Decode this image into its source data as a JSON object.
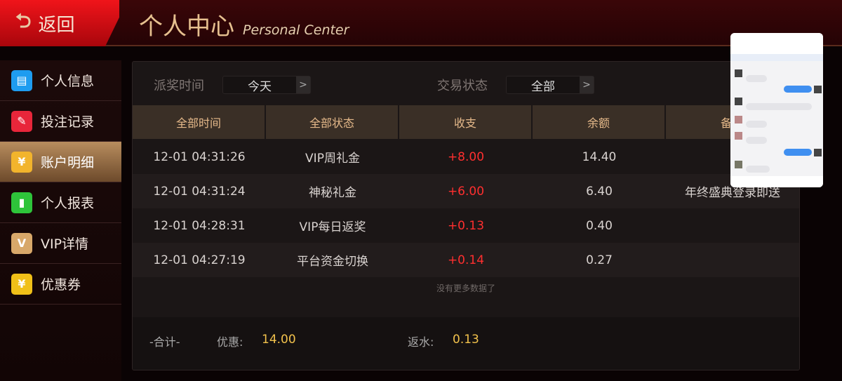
{
  "header": {
    "back_label": "返回",
    "title": "个人中心",
    "title_en": "Personal Center"
  },
  "sidebar": {
    "items": [
      {
        "label": "个人信息",
        "icon": "id-card-icon",
        "color": "#1e9cf0"
      },
      {
        "label": "投注记录",
        "icon": "document-edit-icon",
        "color": "#e8263a"
      },
      {
        "label": "账户明细",
        "icon": "yuan-wallet-icon",
        "color": "#f2b42c",
        "active": true
      },
      {
        "label": "个人报表",
        "icon": "bar-chart-icon",
        "color": "#2ec43a"
      },
      {
        "label": "VIP详情",
        "icon": "crown-icon",
        "color": "#d8a86a"
      },
      {
        "label": "优惠券",
        "icon": "coupon-icon",
        "color": "#f0c018"
      }
    ]
  },
  "filters": {
    "time_label": "派奖时间",
    "time_value": "今天",
    "status_label": "交易状态",
    "status_value": "全部"
  },
  "table": {
    "headers": [
      "全部时间",
      "全部状态",
      "收支",
      "余额",
      "备注"
    ],
    "rows": [
      [
        "12-01 04:31:26",
        "VIP周礼金",
        "+8.00",
        "14.40",
        ""
      ],
      [
        "12-01 04:31:24",
        "神秘礼金",
        "+6.00",
        "6.40",
        "年终盛典登录即送"
      ],
      [
        "12-01 04:28:31",
        "VIP每日返奖",
        "+0.13",
        "0.40",
        ""
      ],
      [
        "12-01 04:27:19",
        "平台资金切换",
        "+0.14",
        "0.27",
        ""
      ]
    ],
    "no_more": "没有更多数据了"
  },
  "summary": {
    "total_label": "-合计-",
    "discount_label": "优惠:",
    "discount_value": "14.00",
    "rebate_label": "返水:",
    "rebate_value": "0.13"
  }
}
